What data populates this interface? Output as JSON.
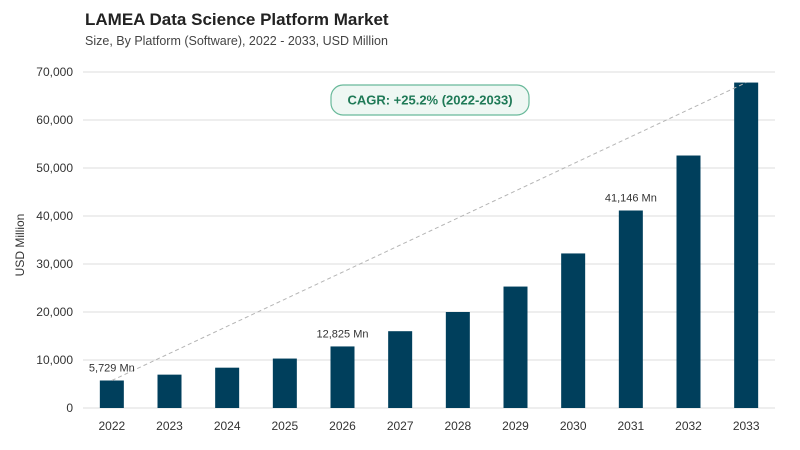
{
  "header": {
    "title": "LAMEA Data Science Platform Market",
    "subtitle": "Size, By Platform (Software), 2022 - 2033, USD Million"
  },
  "annotation": {
    "cagr": "CAGR: +25.2% (2022-2033)"
  },
  "colors": {
    "bar": "#003f5c",
    "trend": "#b5b5b5",
    "grid": "#dcdcdc"
  },
  "chart_data": {
    "type": "bar",
    "title": "LAMEA Data Science Platform Market",
    "subtitle": "Size, By Platform (Software), 2022 - 2033, USD Million",
    "xlabel": "",
    "ylabel": "USD Million",
    "ylim": [
      0,
      70000
    ],
    "yticks": [
      0,
      10000,
      20000,
      30000,
      40000,
      50000,
      60000,
      70000
    ],
    "ytick_labels": [
      "0",
      "10,000",
      "20,000",
      "30,000",
      "40,000",
      "50,000",
      "60,000",
      "70,000"
    ],
    "grid": true,
    "categories": [
      "2022",
      "2023",
      "2024",
      "2025",
      "2026",
      "2027",
      "2028",
      "2029",
      "2030",
      "2031",
      "2032",
      "2033"
    ],
    "values": [
      5729,
      6950,
      8400,
      10300,
      12825,
      16000,
      20000,
      25300,
      32200,
      41146,
      52600,
      67800
    ],
    "data_labels": [
      {
        "index": 0,
        "text": "5,729 Mn"
      },
      {
        "index": 4,
        "text": "12,825 Mn"
      },
      {
        "index": 9,
        "text": "41,146 Mn"
      }
    ],
    "trend_line": {
      "from_index": 0,
      "to_index": 11,
      "style": "dashed"
    }
  }
}
